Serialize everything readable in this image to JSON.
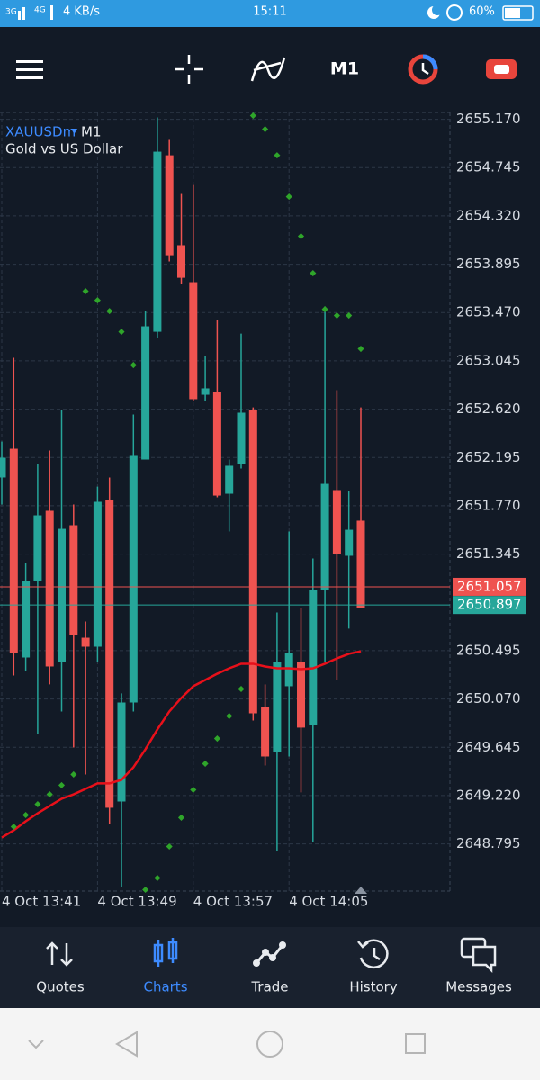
{
  "status_bar": {
    "network": "3G",
    "network2": "4G",
    "speed": "4 KB/s",
    "time": "15:11",
    "battery": "60%"
  },
  "toolbar": {
    "timeframe": "M1"
  },
  "chart_data": {
    "type": "candlestick",
    "symbol": "XAUUSDm",
    "timeframe": "M1",
    "description": "Gold vs US Dollar",
    "categories": [
      "4 Oct 13:41",
      null,
      null,
      null,
      null,
      null,
      null,
      null,
      "4 Oct 13:49",
      null,
      null,
      null,
      null,
      null,
      null,
      null,
      "4 Oct 13:57",
      null,
      null,
      null,
      null,
      null,
      null,
      null,
      "4 Oct 14:05",
      null,
      null,
      null,
      null,
      null,
      null
    ],
    "open": [
      2652.019,
      2652.272,
      2650.435,
      2651.108,
      2651.726,
      2650.396,
      2651.599,
      2650.609,
      2650.53,
      2651.821,
      2649.168,
      2650.039,
      2652.177,
      2653.301,
      2654.853,
      2654.062,
      2653.737,
      2652.747,
      2652.771,
      2651.876,
      2652.137,
      2652.613,
      2650.0,
      2649.604,
      2650.182,
      2650.396,
      2649.841,
      2651.029,
      2651.908,
      2651.33,
      2651.639
    ],
    "high": [
      2652.335,
      2653.072,
      2651.267,
      2652.137,
      2652.256,
      2652.613,
      2651.781,
      2650.752,
      2651.939,
      2652.019,
      2650.119,
      2652.573,
      2653.483,
      2655.186,
      2654.988,
      2654.513,
      2654.592,
      2653.088,
      2653.404,
      2652.177,
      2653.285,
      2652.636,
      2650.198,
      2650.831,
      2651.544,
      2650.871,
      2651.306,
      2653.523,
      2652.787,
      2651.9,
      2652.636
    ],
    "low": [
      2651.781,
      2650.277,
      2650.316,
      2649.762,
      2650.198,
      2649.96,
      2649.643,
      2649.406,
      2650.396,
      2648.97,
      2648.416,
      2649.96,
      2652.177,
      2653.246,
      2653.919,
      2653.721,
      2652.692,
      2652.692,
      2651.845,
      2651.544,
      2652.098,
      2649.881,
      2649.485,
      2648.733,
      2649.564,
      2649.248,
      2648.812,
      2650.396,
      2650.237,
      2650.689,
      2650.871
    ],
    "close": [
      2652.193,
      2650.475,
      2651.108,
      2651.686,
      2650.356,
      2651.567,
      2650.633,
      2650.53,
      2651.805,
      2649.113,
      2650.039,
      2652.209,
      2653.349,
      2654.885,
      2653.974,
      2653.776,
      2652.708,
      2652.803,
      2651.86,
      2652.122,
      2652.589,
      2649.944,
      2649.564,
      2650.396,
      2650.475,
      2649.818,
      2651.029,
      2651.963,
      2651.346,
      2651.559,
      2650.871
    ],
    "up_color": "#26a69a",
    "down_color": "#ef5350",
    "moving_average": {
      "color": "#e8101a",
      "values": [
        2648.851,
        2648.915,
        2648.994,
        2649.065,
        2649.129,
        2649.192,
        2649.231,
        2649.279,
        2649.327,
        2649.327,
        2649.358,
        2649.469,
        2649.627,
        2649.802,
        2649.96,
        2650.079,
        2650.182,
        2650.237,
        2650.292,
        2650.34,
        2650.38,
        2650.38,
        2650.356,
        2650.34,
        2650.34,
        2650.332,
        2650.34,
        2650.38,
        2650.427,
        2650.467,
        2650.49
      ]
    },
    "parabolic_sar": {
      "color": "#2fa52a",
      "values": [
        null,
        2648.946,
        2649.049,
        2649.144,
        2649.231,
        2649.311,
        2649.406,
        2653.658,
        2653.578,
        2653.483,
        2653.301,
        2653.008,
        2648.392,
        2648.495,
        2648.772,
        2649.026,
        2649.271,
        2649.501,
        2649.722,
        2649.92,
        2650.158,
        2655.202,
        2655.083,
        2654.853,
        2654.489,
        2654.141,
        2653.816,
        2653.499,
        2653.444,
        2653.444,
        2653.151
      ]
    },
    "bid": {
      "value": 2651.057,
      "label": "2651.057",
      "color": "#ef5350"
    },
    "ask": {
      "value": 2650.897,
      "label": "2650.897",
      "color": "#26a69a"
    },
    "ylim": [
      2648.38,
      2655.23
    ],
    "yticks": [
      {
        "value": 2655.17,
        "label": "2655.170"
      },
      2654.745,
      {
        "value": 2654.32,
        "label": "2654.320"
      },
      2653.895,
      {
        "value": 2653.47,
        "label": "2653.470"
      },
      2653.045,
      {
        "value": 2652.62,
        "label": "2652.620"
      },
      2652.195,
      {
        "value": 2651.77,
        "label": "2651.770"
      },
      2651.345,
      2650.495,
      {
        "value": 2650.07,
        "label": "2650.070"
      },
      2649.645,
      {
        "value": 2649.22,
        "label": "2649.220"
      },
      2648.795
    ],
    "grid": true
  },
  "nav": {
    "items": [
      "Quotes",
      "Charts",
      "Trade",
      "History",
      "Messages"
    ]
  }
}
